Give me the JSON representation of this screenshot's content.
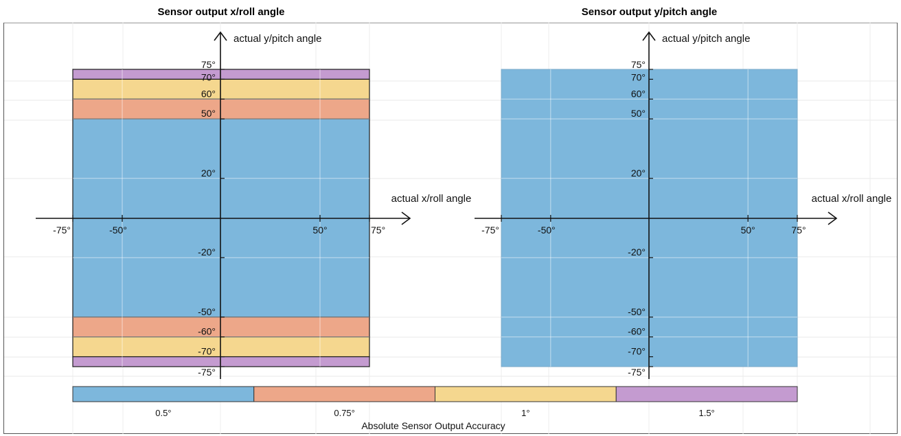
{
  "chart_data": [
    {
      "type": "heatmap",
      "title": "Sensor output x/roll angle",
      "xlabel": "actual x/roll angle",
      "ylabel": "actual y/pitch angle",
      "x_range": [
        -75,
        75
      ],
      "y_range": [
        -75,
        75
      ],
      "x_ticks": [
        {
          "value": -75,
          "label": "-75°"
        },
        {
          "value": -50,
          "label": "-50°"
        },
        {
          "value": 50,
          "label": "50°"
        },
        {
          "value": 75,
          "label": "75°"
        }
      ],
      "y_ticks": [
        {
          "value": 75,
          "label": "75°"
        },
        {
          "value": 70,
          "label": "70°"
        },
        {
          "value": 60,
          "label": "60°"
        },
        {
          "value": 50,
          "label": "50°"
        },
        {
          "value": 20,
          "label": "20°"
        },
        {
          "value": -20,
          "label": "-20°"
        },
        {
          "value": -50,
          "label": "-50°"
        },
        {
          "value": -60,
          "label": "-60°"
        },
        {
          "value": -70,
          "label": "-70°"
        },
        {
          "value": -75,
          "label": "-75°"
        }
      ],
      "bands": [
        {
          "y_from": 70,
          "y_to": 75,
          "accuracy": "1.5°"
        },
        {
          "y_from": 60,
          "y_to": 70,
          "accuracy": "1°"
        },
        {
          "y_from": 50,
          "y_to": 60,
          "accuracy": "0.75°"
        },
        {
          "y_from": -50,
          "y_to": 50,
          "accuracy": "0.5°"
        },
        {
          "y_from": -60,
          "y_to": -50,
          "accuracy": "0.75°"
        },
        {
          "y_from": -70,
          "y_to": -60,
          "accuracy": "1°"
        },
        {
          "y_from": -75,
          "y_to": -70,
          "accuracy": "1.5°"
        }
      ],
      "grid": true
    },
    {
      "type": "heatmap",
      "title": "Sensor output y/pitch angle",
      "xlabel": "actual x/roll angle",
      "ylabel": "actual y/pitch angle",
      "x_range": [
        -75,
        75
      ],
      "y_range": [
        -75,
        75
      ],
      "x_ticks": [
        {
          "value": -75,
          "label": "-75°"
        },
        {
          "value": -50,
          "label": "-50°"
        },
        {
          "value": 50,
          "label": "50°"
        },
        {
          "value": 75,
          "label": "75°"
        }
      ],
      "y_ticks": [
        {
          "value": 75,
          "label": "75°"
        },
        {
          "value": 70,
          "label": "70°"
        },
        {
          "value": 60,
          "label": "60°"
        },
        {
          "value": 50,
          "label": "50°"
        },
        {
          "value": 20,
          "label": "20°"
        },
        {
          "value": -20,
          "label": "-20°"
        },
        {
          "value": -50,
          "label": "-50°"
        },
        {
          "value": -60,
          "label": "-60°"
        },
        {
          "value": -70,
          "label": "-70°"
        },
        {
          "value": -75,
          "label": "-75°"
        }
      ],
      "bands": [
        {
          "y_from": -75,
          "y_to": 75,
          "accuracy": "0.5°"
        }
      ],
      "grid": true
    }
  ],
  "colorbar": {
    "title": "Absolute Sensor Output Accuracy",
    "entries": [
      {
        "label": "0.5°",
        "color": "#7db7dc"
      },
      {
        "label": "0.75°",
        "color": "#eda789"
      },
      {
        "label": "1°",
        "color": "#f5d78f"
      },
      {
        "label": "1.5°",
        "color": "#c49bd0"
      }
    ]
  }
}
